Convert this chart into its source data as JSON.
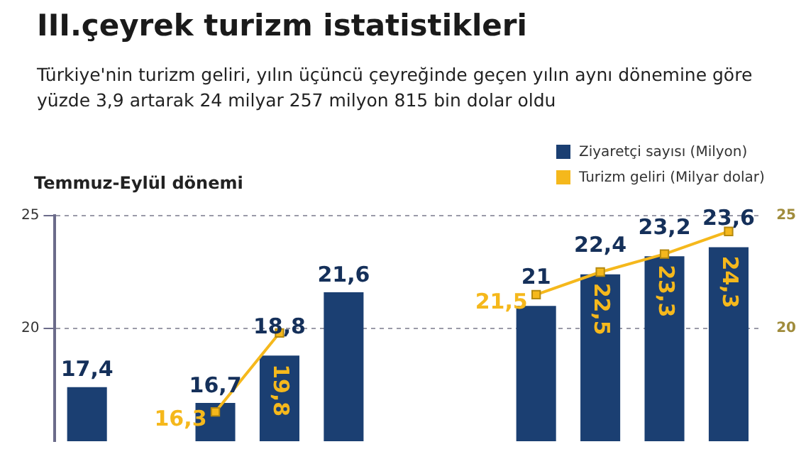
{
  "chart_data": {
    "type": "bar",
    "title": "III.çeyrek turizm istatistikleri",
    "subtitle": "Türkiye'nin turizm geliri, yılın üçüncü çeyreğinde geçen yılın aynı dönemine göre yüzde 3,9 artarak 24 milyar 257 milyon 815 bin dolar oldu",
    "ylabel": "Temmuz-Eylül dönemi",
    "categories": [
      null,
      null,
      null,
      null,
      null,
      null,
      null,
      null,
      null,
      null,
      null
    ],
    "series": [
      {
        "name": "Ziyaretçi sayısı (Milyon)",
        "color": "#1b3f72",
        "values": [
          17.4,
          null,
          16.7,
          18.8,
          21.6,
          null,
          null,
          21,
          22.4,
          23.2,
          23.6
        ],
        "value_labels": [
          "17,4",
          null,
          "16,7",
          "18,8",
          "21,6",
          null,
          null,
          "21",
          "22,4",
          "23,2",
          "23,6"
        ]
      },
      {
        "name": "Turizm geliri (Milyar dolar)",
        "type": "line",
        "axis": "y2",
        "color": "#f5b81c",
        "values": [
          null,
          null,
          16.3,
          19.8,
          null,
          null,
          null,
          21.5,
          22.5,
          23.3,
          24.3
        ],
        "value_labels": [
          null,
          null,
          "16,3",
          "19,8",
          null,
          null,
          null,
          "21,5",
          "22,5",
          "23,3",
          "24,3"
        ]
      }
    ],
    "ylim": [
      15,
      25
    ],
    "yticks": [
      20,
      25
    ],
    "y2lim": [
      15,
      25
    ],
    "y2ticks": [
      20,
      25
    ],
    "tick_labels": "y",
    "grid": "y",
    "legend": "top right",
    "marker": "square"
  }
}
